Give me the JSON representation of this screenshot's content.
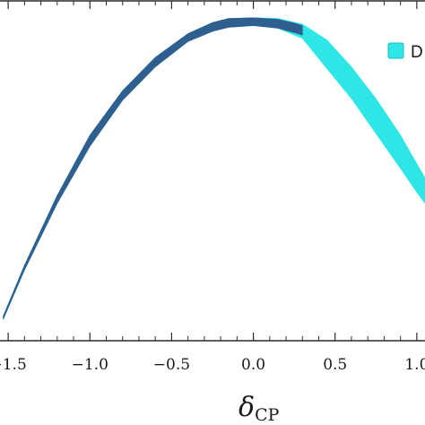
{
  "chart_data": {
    "type": "area",
    "xlabel_main": "δ",
    "xlabel_sub": "CP",
    "x_ticks": [
      -1.5,
      -1.0,
      -0.5,
      0.0,
      0.5,
      1.0
    ],
    "x_tick_labels": [
      "−1.5",
      "−1.0",
      "−0.5",
      "0.0",
      "0.5",
      "1.0"
    ],
    "xlim": [
      -1.55,
      1.05
    ],
    "ylim": [
      0,
      1
    ],
    "grid": false,
    "legend": {
      "placement": "top-right",
      "entries": [
        {
          "label": "D",
          "color": "#2ee6e6"
        }
      ]
    },
    "series": [
      {
        "label": "D",
        "color": "#2ee6e6",
        "x": [
          -1.53,
          -1.4,
          -1.2,
          -1.0,
          -0.8,
          -0.6,
          -0.4,
          -0.25,
          -0.15,
          0.0,
          0.15,
          0.3,
          0.45,
          0.6,
          0.75,
          0.9,
          1.0,
          1.05
        ],
        "upper": [
          0.055,
          0.215,
          0.435,
          0.625,
          0.765,
          0.87,
          0.945,
          0.98,
          0.993,
          0.995,
          0.993,
          0.975,
          0.925,
          0.84,
          0.74,
          0.625,
          0.535,
          0.49
        ],
        "lower": [
          0.045,
          0.2,
          0.41,
          0.59,
          0.735,
          0.84,
          0.92,
          0.952,
          0.965,
          0.97,
          0.962,
          0.93,
          0.835,
          0.74,
          0.63,
          0.52,
          0.445,
          0.41
        ]
      },
      {
        "label": "",
        "color": "#2f5f8f",
        "x": [
          -1.53,
          -1.4,
          -1.2,
          -1.0,
          -0.8,
          -0.6,
          -0.4,
          -0.25,
          -0.15,
          0.0,
          0.15,
          0.25,
          0.3
        ],
        "upper": [
          0.055,
          0.215,
          0.435,
          0.625,
          0.765,
          0.87,
          0.945,
          0.98,
          0.993,
          0.995,
          0.99,
          0.978,
          0.97
        ],
        "lower": [
          0.045,
          0.2,
          0.41,
          0.59,
          0.735,
          0.84,
          0.92,
          0.952,
          0.965,
          0.97,
          0.962,
          0.948,
          0.94
        ]
      }
    ]
  }
}
